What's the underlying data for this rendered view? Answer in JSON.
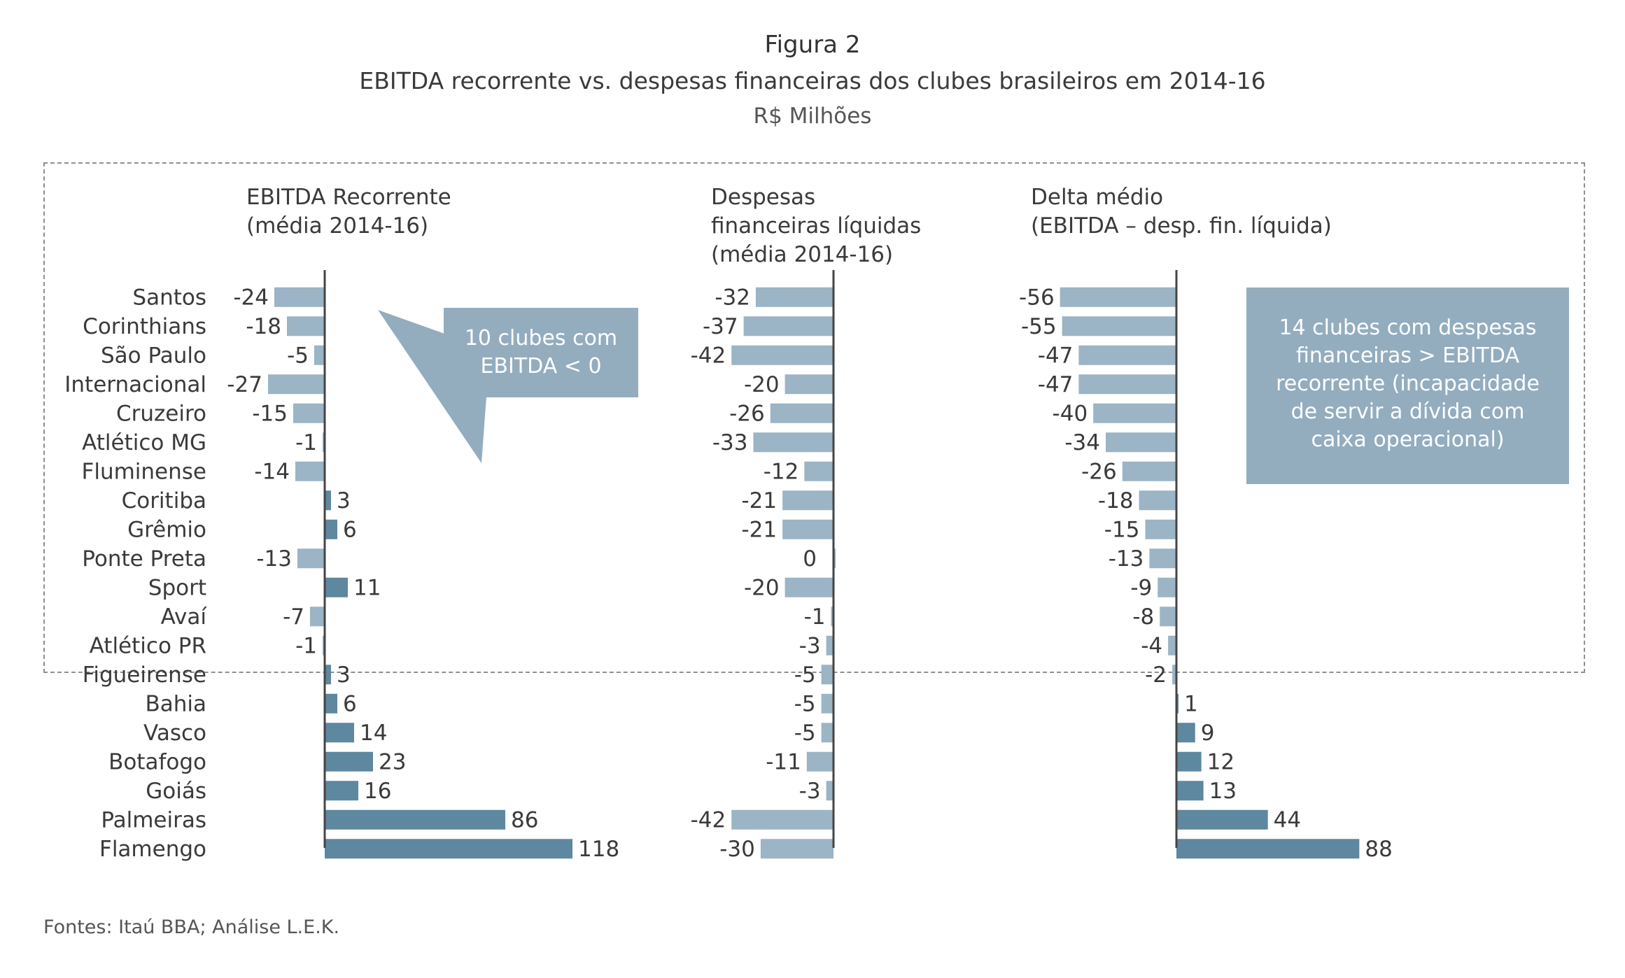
{
  "header": {
    "figure_label": "Figura 2",
    "title": "EBITDA recorrente vs. despesas financeiras dos clubes brasileiros em 2014-16",
    "subtitle": "R$ Milhões"
  },
  "panels": {
    "ebitda": {
      "heading": [
        "EBITDA Recorrente",
        "(média 2014-16)"
      ]
    },
    "despesas": {
      "heading": [
        "Despesas",
        "financeiras líquidas",
        "(média 2014-16)"
      ]
    },
    "delta": {
      "heading": [
        "Delta médio",
        "(EBITDA – desp. fin. líquida)"
      ]
    }
  },
  "callouts": {
    "negative_ebitda": [
      "10 clubes com",
      "EBITDA < 0"
    ],
    "expenses_exceed": [
      "14 clubes com despesas",
      "financeiras > EBITDA",
      "recorrente (incapacidade",
      "de servir a dívida com",
      "caixa operacional)"
    ]
  },
  "footer": {
    "sources": "Fontes: Itaú BBA; Análise L.E.K."
  },
  "colors": {
    "bar_light": "#9bb4c6",
    "bar_dark": "#5e87a0",
    "axis": "#444444",
    "callout": "#93adbf"
  },
  "chart_data": [
    {
      "type": "bar",
      "orientation": "horizontal",
      "title": "EBITDA Recorrente (média 2014-16)",
      "categories": [
        "Santos",
        "Corinthians",
        "São Paulo",
        "Internacional",
        "Cruzeiro",
        "Atlético MG",
        "Fluminense",
        "Coritiba",
        "Grêmio",
        "Ponte Preta",
        "Sport",
        "Avaí",
        "Atlético PR",
        "Figueirense",
        "Bahia",
        "Vasco",
        "Botafogo",
        "Goiás",
        "Palmeiras",
        "Flamengo"
      ],
      "values": [
        -24,
        -18,
        -5,
        -27,
        -15,
        -1,
        -14,
        3,
        6,
        -13,
        11,
        -7,
        -1,
        3,
        6,
        14,
        23,
        16,
        86,
        118
      ],
      "value_labels": [
        "-24",
        "-18",
        "-5",
        "-27",
        "-15",
        "-1",
        "-14",
        "3",
        "6",
        "-13",
        "11",
        "-7",
        "-1",
        "3",
        "6",
        "14",
        "23",
        "16",
        "86",
        "118"
      ]
    },
    {
      "type": "bar",
      "orientation": "horizontal",
      "title": "Despesas financeiras líquidas (média 2014-16)",
      "categories": [
        "Santos",
        "Corinthians",
        "São Paulo",
        "Internacional",
        "Cruzeiro",
        "Atlético MG",
        "Fluminense",
        "Coritiba",
        "Grêmio",
        "Ponte Preta",
        "Sport",
        "Avaí",
        "Atlético PR",
        "Figueirense",
        "Bahia",
        "Vasco",
        "Botafogo",
        "Goiás",
        "Palmeiras",
        "Flamengo"
      ],
      "values": [
        -32,
        -37,
        -42,
        -20,
        -26,
        -33,
        -12,
        -21,
        -21,
        0,
        -20,
        -1,
        -3,
        -5,
        -5,
        -5,
        -11,
        -3,
        -42,
        -30
      ],
      "value_labels": [
        "-32",
        "-37",
        "-42",
        "-20",
        "-26",
        "-33",
        "-12",
        "-21",
        "-21",
        "0",
        "-20",
        "-1",
        "-3",
        "-5",
        "-5",
        "-5",
        "-11",
        "-3",
        "-42",
        "-30"
      ]
    },
    {
      "type": "bar",
      "orientation": "horizontal",
      "title": "Delta médio (EBITDA – desp. fin. líquida)",
      "categories": [
        "Santos",
        "Corinthians",
        "São Paulo",
        "Internacional",
        "Cruzeiro",
        "Atlético MG",
        "Fluminense",
        "Coritiba",
        "Grêmio",
        "Ponte Preta",
        "Sport",
        "Avaí",
        "Atlético PR",
        "Figueirense",
        "Bahia",
        "Vasco",
        "Botafogo",
        "Goiás",
        "Palmeiras",
        "Flamengo"
      ],
      "values": [
        -56,
        -55,
        -47,
        -47,
        -40,
        -34,
        -26,
        -18,
        -15,
        -13,
        -9,
        -8,
        -4,
        -2,
        1,
        9,
        12,
        13,
        44,
        88
      ],
      "value_labels": [
        "-56",
        "-55",
        "-47",
        "-47",
        "-40",
        "-34",
        "-26",
        "-18",
        "-15",
        "-13",
        "-9",
        "-8",
        "-4",
        "-2",
        "1",
        "9",
        "12",
        "13",
        "44",
        "88"
      ]
    }
  ]
}
